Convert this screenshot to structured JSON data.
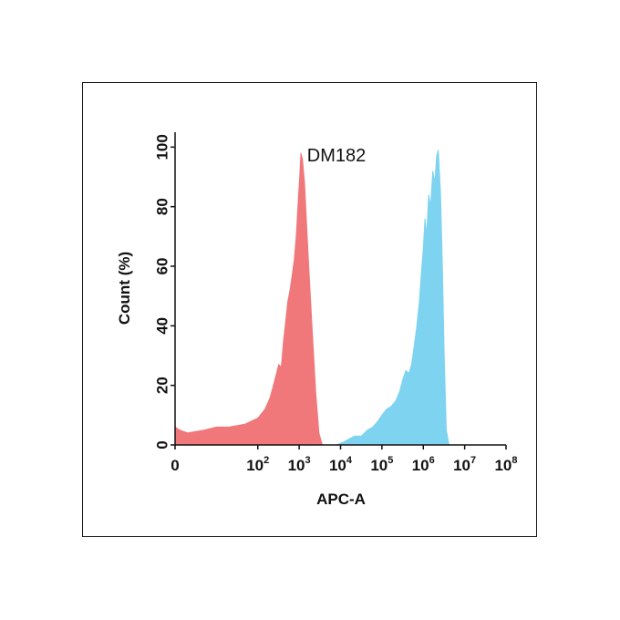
{
  "chart_data": {
    "type": "area",
    "title": "DM182",
    "xlabel": "APC-A",
    "ylabel": "Count  (%)",
    "x_scale": "log",
    "xlim": [
      1,
      100000000
    ],
    "ylim": [
      0,
      105
    ],
    "x_ticks": [
      {
        "value": 1,
        "base": "0",
        "exp": ""
      },
      {
        "value": 100,
        "base": "10",
        "exp": "2"
      },
      {
        "value": 1000,
        "base": "10",
        "exp": "3"
      },
      {
        "value": 10000,
        "base": "10",
        "exp": "4"
      },
      {
        "value": 100000,
        "base": "10",
        "exp": "5"
      },
      {
        "value": 1000000,
        "base": "10",
        "exp": "6"
      },
      {
        "value": 10000000,
        "base": "10",
        "exp": "7"
      },
      {
        "value": 100000000,
        "base": "10",
        "exp": "8"
      }
    ],
    "y_ticks": [
      "0",
      "20",
      "40",
      "60",
      "80",
      "100"
    ],
    "series": [
      {
        "color": "#f0787a",
        "x": [
          1,
          1.3,
          2,
          5,
          10,
          20,
          50,
          100,
          150,
          200,
          260,
          320,
          370,
          420,
          470,
          530,
          600,
          680,
          760,
          850,
          950,
          1030,
          1100,
          1200,
          1350,
          1500,
          1700,
          2000,
          2500,
          3000,
          3600
        ],
        "y": [
          6,
          5,
          4,
          5,
          6,
          6,
          7,
          9,
          12,
          16,
          22,
          27,
          26,
          35,
          41,
          48,
          52,
          57,
          62,
          70,
          82,
          90,
          98,
          96,
          88,
          75,
          60,
          42,
          18,
          4,
          0
        ]
      },
      {
        "color": "#7ed3f0",
        "x": [
          8000,
          12000,
          16000,
          22000,
          32000,
          45000,
          60000,
          80000,
          100000,
          130000,
          170000,
          220000,
          270000,
          320000,
          380000,
          450000,
          520000,
          600000,
          700000,
          800000,
          900000,
          1000000,
          1100000,
          1200000,
          1350000,
          1500000,
          1700000,
          1900000,
          2100000,
          2300000,
          2600000,
          2900000,
          3200000,
          3600000,
          4200000
        ],
        "y": [
          0,
          1,
          2,
          3,
          3,
          5,
          6,
          8,
          10,
          12,
          13,
          15,
          18,
          22,
          25,
          24,
          27,
          33,
          40,
          48,
          58,
          66,
          76,
          70,
          84,
          80,
          92,
          88,
          97,
          99,
          85,
          60,
          30,
          5,
          0
        ]
      }
    ]
  }
}
